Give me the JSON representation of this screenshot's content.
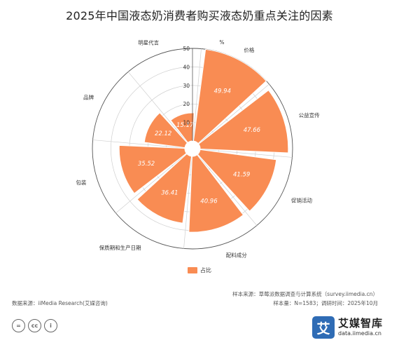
{
  "chart_data": {
    "type": "polar-bar",
    "title": "2025年中国液态奶消费者购买液态奶重点关注的因素",
    "unit": "%",
    "categories": [
      "价格",
      "公益宣传",
      "促销活动",
      "配料成分",
      "保质期和生产日期",
      "包装",
      "品牌",
      "明星代言"
    ],
    "series": [
      {
        "name": "占比",
        "values": [
          49.94,
          47.66,
          41.59,
          40.96,
          36.41,
          35.52,
          22.12,
          15.17
        ]
      }
    ],
    "radial_ticks": [
      "10",
      "20",
      "30",
      "40",
      "50"
    ],
    "rlim": [
      0,
      50
    ],
    "grid": true,
    "legend": "bottom"
  },
  "colors": {
    "bar": "#f98c53",
    "grid": "#cfcfcf",
    "axis": "#333333"
  },
  "footer": {
    "data_source": "数据来源：iiMedia Research(艾媒咨询)",
    "sample_source": "样本来源：草莓派数据调查与计算系统（survey.iimedia.cn）",
    "sample_info": "样本量：N=1583；调研时间：2025年10月"
  },
  "brand": {
    "logo_char": "艾",
    "name": "艾媒智库",
    "url": "data.iimedia.cn"
  },
  "license_icons": [
    "=",
    "cc",
    "i"
  ]
}
